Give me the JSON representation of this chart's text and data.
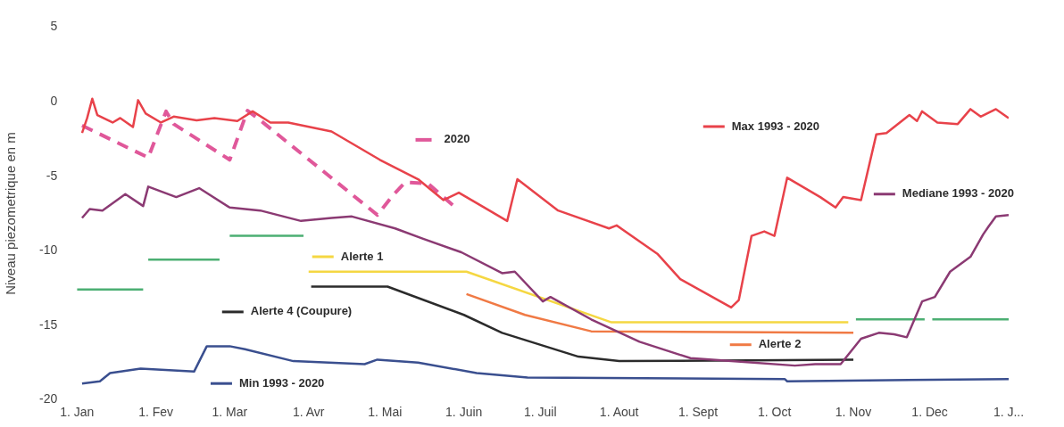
{
  "chart_data": {
    "type": "line",
    "ylabel": "Niveau piezometrique en m",
    "legend": true,
    "marker": "none",
    "line_style": "solid",
    "xlim": [
      "2020-01-01",
      "2021-01-01"
    ],
    "ylim": [
      -20,
      5
    ],
    "xticks": [
      {
        "value": "2020-01-01",
        "label": "1. Jan"
      },
      {
        "value": "2020-02-01",
        "label": "1. Fev"
      },
      {
        "value": "2020-03-01",
        "label": "1. Mar"
      },
      {
        "value": "2020-04-01",
        "label": "1. Avr"
      },
      {
        "value": "2020-05-01",
        "label": "1. Mai"
      },
      {
        "value": "2020-06-01",
        "label": "1. Juin"
      },
      {
        "value": "2020-07-01",
        "label": "1. Juil"
      },
      {
        "value": "2020-08-01",
        "label": "1. Aout"
      },
      {
        "value": "2020-09-01",
        "label": "1. Sept"
      },
      {
        "value": "2020-10-01",
        "label": "1. Oct"
      },
      {
        "value": "2020-11-01",
        "label": "1. Nov"
      },
      {
        "value": "2020-12-01",
        "label": "1. Dec"
      },
      {
        "value": "2021-01-01",
        "label": "1. J..."
      }
    ],
    "yticks": [
      -20,
      -15,
      -10,
      -5,
      0,
      5
    ],
    "series": [
      {
        "name": "Max 1993 - 2020",
        "color": "#e8424a",
        "x": [
          "2020-01-03",
          "2020-01-05",
          "2020-01-07",
          "2020-01-09",
          "2020-01-15",
          "2020-01-18",
          "2020-01-23",
          "2020-01-25",
          "2020-01-28",
          "2020-02-03",
          "2020-02-08",
          "2020-02-17",
          "2020-02-24",
          "2020-03-04",
          "2020-03-10",
          "2020-03-17",
          "2020-03-24",
          "2020-04-10",
          "2020-04-29",
          "2020-05-14",
          "2020-05-24",
          "2020-05-30",
          "2020-06-11",
          "2020-06-18",
          "2020-06-22",
          "2020-07-08",
          "2020-07-28",
          "2020-07-31",
          "2020-08-16",
          "2020-08-25",
          "2020-09-14",
          "2020-09-17",
          "2020-09-22",
          "2020-09-27",
          "2020-10-01",
          "2020-10-06",
          "2020-10-19",
          "2020-10-25",
          "2020-10-28",
          "2020-11-04",
          "2020-11-10",
          "2020-11-14",
          "2020-11-17",
          "2020-11-23",
          "2020-11-26",
          "2020-11-28",
          "2020-12-04",
          "2020-12-12",
          "2020-12-17",
          "2020-12-21",
          "2020-12-27",
          "2021-01-01"
        ],
        "values": [
          -2.1,
          -1.1,
          0.2,
          -0.9,
          -1.4,
          -1.1,
          -1.7,
          0.1,
          -0.8,
          -1.4,
          -1.0,
          -1.25,
          -1.1,
          -1.3,
          -0.65,
          -1.4,
          -1.4,
          -2.0,
          -3.9,
          -5.2,
          -6.6,
          -6.1,
          -7.3,
          -8.0,
          -5.2,
          -7.3,
          -8.5,
          -8.3,
          -10.2,
          -11.9,
          -13.8,
          -13.3,
          -9.0,
          -8.7,
          -9.0,
          -5.1,
          -6.4,
          -7.1,
          -6.4,
          -6.6,
          -2.2,
          -2.1,
          -1.7,
          -0.9,
          -1.3,
          -0.65,
          -1.4,
          -1.5,
          -0.5,
          -1.0,
          -0.5,
          -1.1
        ]
      },
      {
        "name": "Mediane 1993 - 2020",
        "color": "#8b3a73",
        "x": [
          "2020-01-03",
          "2020-01-06",
          "2020-01-11",
          "2020-01-20",
          "2020-01-27",
          "2020-01-29",
          "2020-02-09",
          "2020-02-18",
          "2020-03-01",
          "2020-03-13",
          "2020-03-29",
          "2020-04-10",
          "2020-04-18",
          "2020-05-05",
          "2020-05-16",
          "2020-05-31",
          "2020-06-16",
          "2020-06-21",
          "2020-07-02",
          "2020-07-05",
          "2020-07-21",
          "2020-08-09",
          "2020-08-29",
          "2020-09-14",
          "2020-10-09",
          "2020-10-17",
          "2020-10-27",
          "2020-11-04",
          "2020-11-11",
          "2020-11-17",
          "2020-11-22",
          "2020-11-28",
          "2020-12-03",
          "2020-12-09",
          "2020-12-17",
          "2020-12-22",
          "2020-12-24",
          "2020-12-27",
          "2021-01-01"
        ],
        "values": [
          -7.8,
          -7.2,
          -7.3,
          -6.2,
          -7.0,
          -5.7,
          -6.4,
          -5.8,
          -7.1,
          -7.3,
          -8.0,
          -7.8,
          -7.7,
          -8.5,
          -9.2,
          -10.1,
          -11.5,
          -11.4,
          -13.4,
          -13.1,
          -14.6,
          -16.1,
          -17.2,
          -17.4,
          -17.7,
          -17.6,
          -17.6,
          -15.9,
          -15.5,
          -15.6,
          -15.8,
          -13.4,
          -13.1,
          -11.4,
          -10.4,
          -8.9,
          -8.4,
          -7.7,
          -7.6
        ]
      },
      {
        "name": "2020",
        "color": "#e0589a",
        "line_style": "dashed",
        "x": [
          "2020-01-03",
          "2020-01-29",
          "2020-02-05",
          "2020-02-08",
          "2020-03-01",
          "2020-03-08",
          "2020-03-13",
          "2020-04-28",
          "2020-05-04",
          "2020-05-09",
          "2020-05-18",
          "2020-05-28"
        ],
        "values": [
          -1.6,
          -3.75,
          -0.65,
          -1.5,
          -3.9,
          -0.6,
          -1.25,
          -7.6,
          -6.3,
          -5.4,
          -5.5,
          -7.0
        ]
      },
      {
        "name": "Min 1993 - 2020",
        "color": "#3a4f8f",
        "x": [
          "2020-01-03",
          "2020-01-10",
          "2020-01-14",
          "2020-01-26",
          "2020-02-16",
          "2020-02-21",
          "2020-03-01",
          "2020-03-07",
          "2020-03-26",
          "2020-04-23",
          "2020-04-28",
          "2020-05-14",
          "2020-06-06",
          "2020-06-26",
          "2020-10-05",
          "2020-10-06",
          "2021-01-01"
        ],
        "values": [
          -18.9,
          -18.75,
          -18.2,
          -17.9,
          -18.1,
          -16.4,
          -16.4,
          -16.6,
          -17.4,
          -17.6,
          -17.3,
          -17.5,
          -18.2,
          -18.5,
          -18.6,
          -18.75,
          -18.6
        ]
      },
      {
        "name": "Alerte 1",
        "color": "#f5d742",
        "x": [
          "2020-04-01",
          "2020-06-02",
          "2020-07-29",
          "2020-10-30"
        ],
        "values": [
          -11.4,
          -11.4,
          -14.8,
          -14.8
        ]
      },
      {
        "name": "Alerte 2",
        "color": "#f07a45",
        "x": [
          "2020-06-02",
          "2020-06-25",
          "2020-07-21",
          "2020-11-01"
        ],
        "values": [
          -12.9,
          -14.3,
          -15.4,
          -15.5
        ]
      },
      {
        "name": "Alerte 4 (Coupure)",
        "color": "#2b2b2b",
        "x": [
          "2020-04-02",
          "2020-05-02",
          "2020-06-01",
          "2020-06-16",
          "2020-07-16",
          "2020-08-01",
          "2020-11-01"
        ],
        "values": [
          -12.4,
          -12.4,
          -14.3,
          -15.5,
          -17.1,
          -17.4,
          -17.3
        ]
      },
      {
        "color": "#4caf73",
        "x": [
          "2020-01-01",
          "2020-01-27",
          "2020-01-28",
          "2020-01-29",
          "2020-02-26",
          "2020-02-28",
          "2020-03-01",
          "2020-03-30",
          "2020-07-19",
          "2020-11-02",
          "2020-11-29",
          "2020-11-30",
          "2020-12-02",
          "2021-01-01"
        ],
        "values": [
          -12.6,
          -12.6,
          null,
          -10.6,
          -10.6,
          null,
          -9.0,
          -9.0,
          null,
          -14.6,
          -14.6,
          null,
          -14.6,
          -14.6
        ]
      }
    ]
  }
}
